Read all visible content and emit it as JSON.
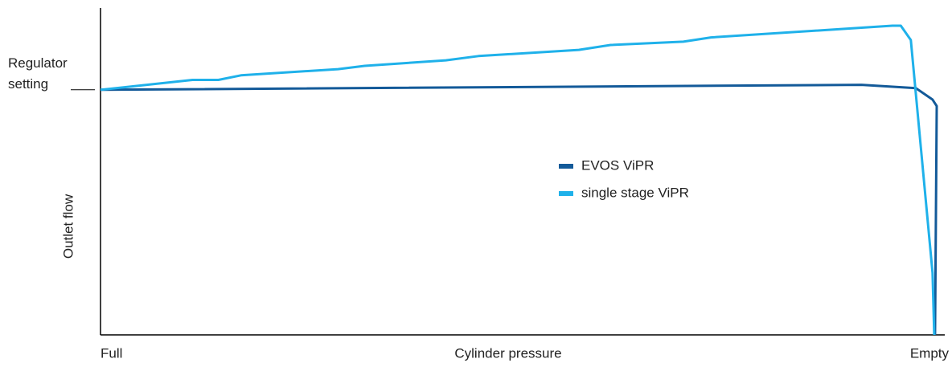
{
  "chart_data": {
    "type": "line",
    "x_label": "Cylinder pressure",
    "y_label": "Outlet flow",
    "xlim": [
      0,
      100
    ],
    "xticks": [
      {
        "value": 0,
        "label": "Full"
      },
      {
        "value": 100,
        "label": "Empty"
      }
    ],
    "ylim": [
      0,
      100
    ],
    "yticks": [
      {
        "value": 75,
        "label": "Regulator setting"
      }
    ],
    "legend": "center",
    "series": [
      {
        "name": "EVOS ViPR",
        "color": "#135a99",
        "x": [
          0,
          91,
          97.5,
          99.5,
          100,
          99.8
        ],
        "values": [
          75,
          76.5,
          75.5,
          72,
          70,
          0
        ]
      },
      {
        "name": "single stage ViPR",
        "color": "#1fb1ea",
        "x": [
          0,
          11,
          14.1,
          16.8,
          28.4,
          31.6,
          41.3,
          45.2,
          57.2,
          61,
          69.7,
          73,
          94.7,
          95.7,
          96.9,
          99.5,
          99.7
        ],
        "values": [
          75,
          78,
          78,
          79.4,
          81.3,
          82.3,
          84,
          85.3,
          87.2,
          88.7,
          89.7,
          91,
          94.6,
          94.6,
          90.2,
          19,
          0
        ]
      }
    ]
  }
}
